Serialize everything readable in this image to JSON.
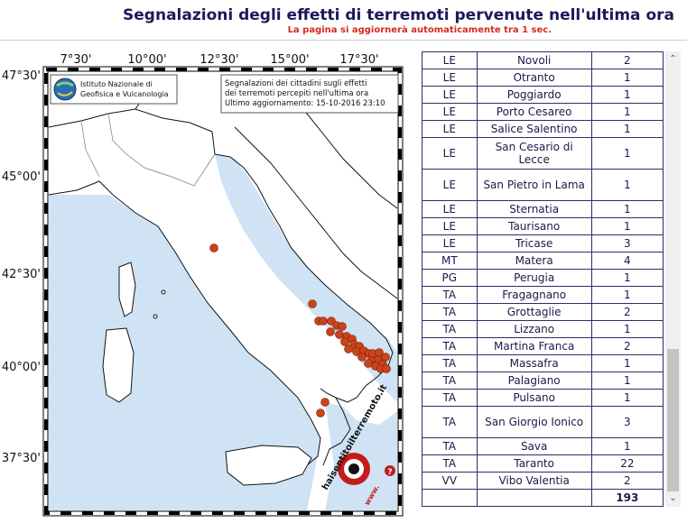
{
  "header": {
    "title": "Segnalazioni degli effetti di terremoti pervenute nell'ultima ora",
    "subtitle": "La pagina si aggiornerà automaticamente tra 1 sec."
  },
  "map": {
    "longitude_labels": [
      "7°30'",
      "10°00'",
      "12°30'",
      "15°00'",
      "17°30'"
    ],
    "latitude_labels": [
      "47°30'",
      "45°00'",
      "42°30'",
      "40°00'",
      "37°30'"
    ],
    "ingv_line1": "Istituto Nazionale di",
    "ingv_line2": "Geofisica e Vulcanologia",
    "info_line1": "Segnalazioni dei cittadini sugli effetti",
    "info_line2": "dei terremoti percepiti nell'ultima ora",
    "info_line3": "Ultimo aggiornamento: 15-10-2016 23:10",
    "logo_text": "haisentitoilterremoto.it",
    "logo_url": "www.",
    "logo_q": "?",
    "dot_color": "#c8441a",
    "sea_color": "#cfe3f5"
  },
  "table": {
    "rows": [
      {
        "prov": "LE",
        "comune": "Novoli",
        "n": "2"
      },
      {
        "prov": "LE",
        "comune": "Otranto",
        "n": "1"
      },
      {
        "prov": "LE",
        "comune": "Poggiardo",
        "n": "1"
      },
      {
        "prov": "LE",
        "comune": "Porto Cesareo",
        "n": "1"
      },
      {
        "prov": "LE",
        "comune": "Salice Salentino",
        "n": "1"
      },
      {
        "prov": "LE",
        "comune": "San Cesario di Lecce",
        "n": "1"
      },
      {
        "prov": "LE",
        "comune": "San Pietro in Lama",
        "n": "1"
      },
      {
        "prov": "LE",
        "comune": "Sternatia",
        "n": "1"
      },
      {
        "prov": "LE",
        "comune": "Taurisano",
        "n": "1"
      },
      {
        "prov": "LE",
        "comune": "Tricase",
        "n": "3"
      },
      {
        "prov": "MT",
        "comune": "Matera",
        "n": "4"
      },
      {
        "prov": "PG",
        "comune": "Perugia",
        "n": "1"
      },
      {
        "prov": "TA",
        "comune": "Fragagnano",
        "n": "1"
      },
      {
        "prov": "TA",
        "comune": "Grottaglie",
        "n": "2"
      },
      {
        "prov": "TA",
        "comune": "Lizzano",
        "n": "1"
      },
      {
        "prov": "TA",
        "comune": "Martina Franca",
        "n": "2"
      },
      {
        "prov": "TA",
        "comune": "Massafra",
        "n": "1"
      },
      {
        "prov": "TA",
        "comune": "Palagiano",
        "n": "1"
      },
      {
        "prov": "TA",
        "comune": "Pulsano",
        "n": "1"
      },
      {
        "prov": "TA",
        "comune": "San Giorgio Ionico",
        "n": "3"
      },
      {
        "prov": "TA",
        "comune": "Sava",
        "n": "1"
      },
      {
        "prov": "TA",
        "comune": "Taranto",
        "n": "22"
      },
      {
        "prov": "VV",
        "comune": "Vibo Valentia",
        "n": "2"
      }
    ],
    "total": "193"
  },
  "scrollbar": {
    "up": "⌃",
    "down": "⌄"
  }
}
